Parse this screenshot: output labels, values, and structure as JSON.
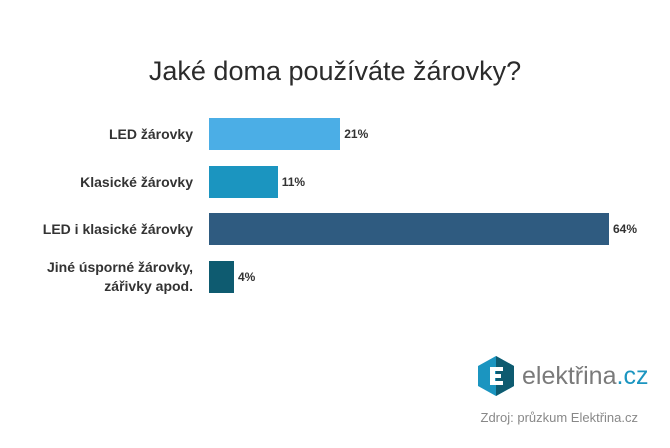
{
  "chart_data": {
    "type": "bar",
    "orientation": "horizontal",
    "title": "Jaké doma používáte žárovky?",
    "categories": [
      "LED žárovky",
      "Klasické žárovky",
      "LED i klasické žárovky",
      "Jiné úsporné žárovky, zářivky apod."
    ],
    "values": [
      21,
      11,
      64,
      4
    ],
    "value_labels": [
      "21%",
      "11%",
      "64%",
      "4%"
    ],
    "colors": [
      "#4baee6",
      "#1b95c0",
      "#2f5b80",
      "#0e5b70"
    ]
  },
  "brand": {
    "name": "elektřina",
    "domain": ".cz"
  },
  "source": "Zdroj: průzkum Elektřina.cz"
}
